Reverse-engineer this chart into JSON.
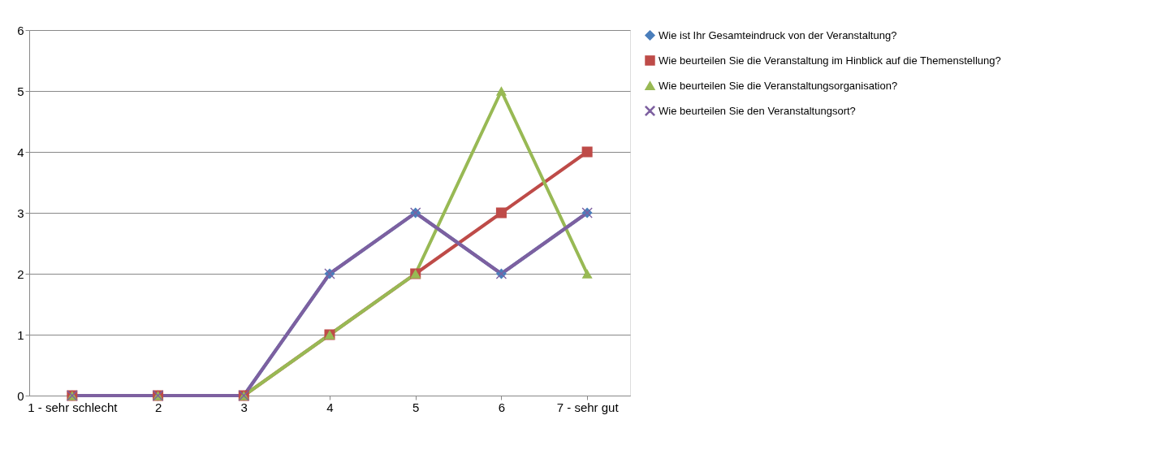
{
  "chart_data": {
    "type": "line",
    "categories": [
      "1 - sehr schlecht",
      "2",
      "3",
      "4",
      "5",
      "6",
      "7 - sehr gut"
    ],
    "series": [
      {
        "name": "Wie ist Ihr Gesamteindruck von der Veranstaltung?",
        "color": "#4a7ebb",
        "marker": "diamond",
        "values": [
          0,
          0,
          0,
          2,
          3,
          2,
          3
        ]
      },
      {
        "name": "Wie beurteilen Sie die Veranstaltung im Hinblick auf die Themenstellung?",
        "color": "#be4b48",
        "marker": "square",
        "values": [
          0,
          0,
          0,
          1,
          2,
          3,
          4
        ]
      },
      {
        "name": "Wie beurteilen Sie die Veranstaltungsorganisation?",
        "color": "#98b954",
        "marker": "triangle",
        "values": [
          0,
          0,
          0,
          1,
          2,
          5,
          2
        ]
      },
      {
        "name": "Wie beurteilen Sie den Veranstaltungsort?",
        "color": "#7d60a0",
        "marker": "cross",
        "values": [
          0,
          0,
          0,
          2,
          3,
          2,
          3
        ]
      }
    ],
    "ylim": [
      0,
      6
    ],
    "yticks": [
      0,
      1,
      2,
      3,
      4,
      5,
      6
    ],
    "grid": "y",
    "legend": "right"
  }
}
